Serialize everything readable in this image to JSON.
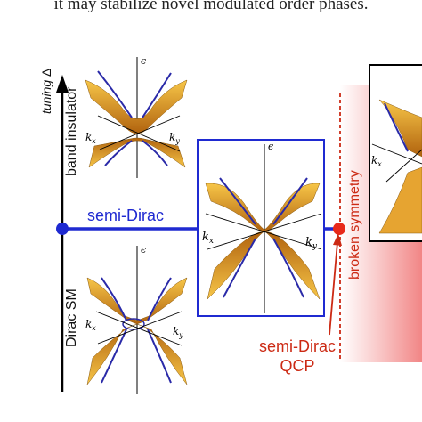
{
  "caption": "it may stabilize novel modulated order phases.",
  "axis": {
    "tuning": "tuning",
    "delta": "Δ"
  },
  "labels": {
    "band_insulator": "band insulator",
    "dirac_sm": "Dirac SM",
    "semi_dirac": "semi-Dirac",
    "broken_symmetry": "broken symmetry",
    "qcp_line1": "semi-Dirac",
    "qcp_line2": "QCP"
  },
  "panel_axes": {
    "eps": "ϵ",
    "kx": "k",
    "kx_sub": "x",
    "ky": "k",
    "ky_sub": "y"
  },
  "colors": {
    "blue": "#1f2ad1",
    "red": "#cc2a14",
    "surface": "#f2b233",
    "surface_dark": "#c27a12",
    "curve": "#2a2aa8"
  }
}
